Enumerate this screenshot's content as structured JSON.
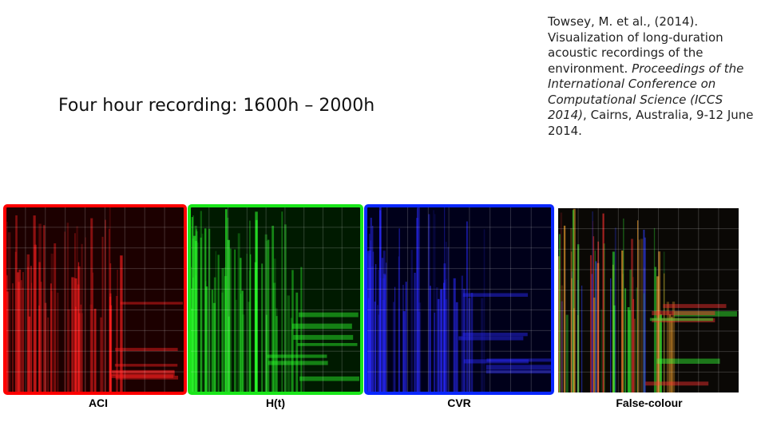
{
  "slide": {
    "heading": "Four hour recording: 1600h – 2000h",
    "citation": [
      {
        "text": "Towsey, M. et al., (2014). Visualization of long-duration acoustic recordings of the environment. ",
        "italic": false
      },
      {
        "text": "Proceedings of the International Conference on Computational Science (ICCS 2014)",
        "italic": true
      },
      {
        "text": ", Cairns, Australia, 9-12 June 2014.",
        "italic": false
      }
    ],
    "panels": [
      {
        "label": "ACI"
      },
      {
        "label": "H(t)"
      },
      {
        "label": "CVR"
      },
      {
        "label": "False-colour"
      }
    ]
  }
}
